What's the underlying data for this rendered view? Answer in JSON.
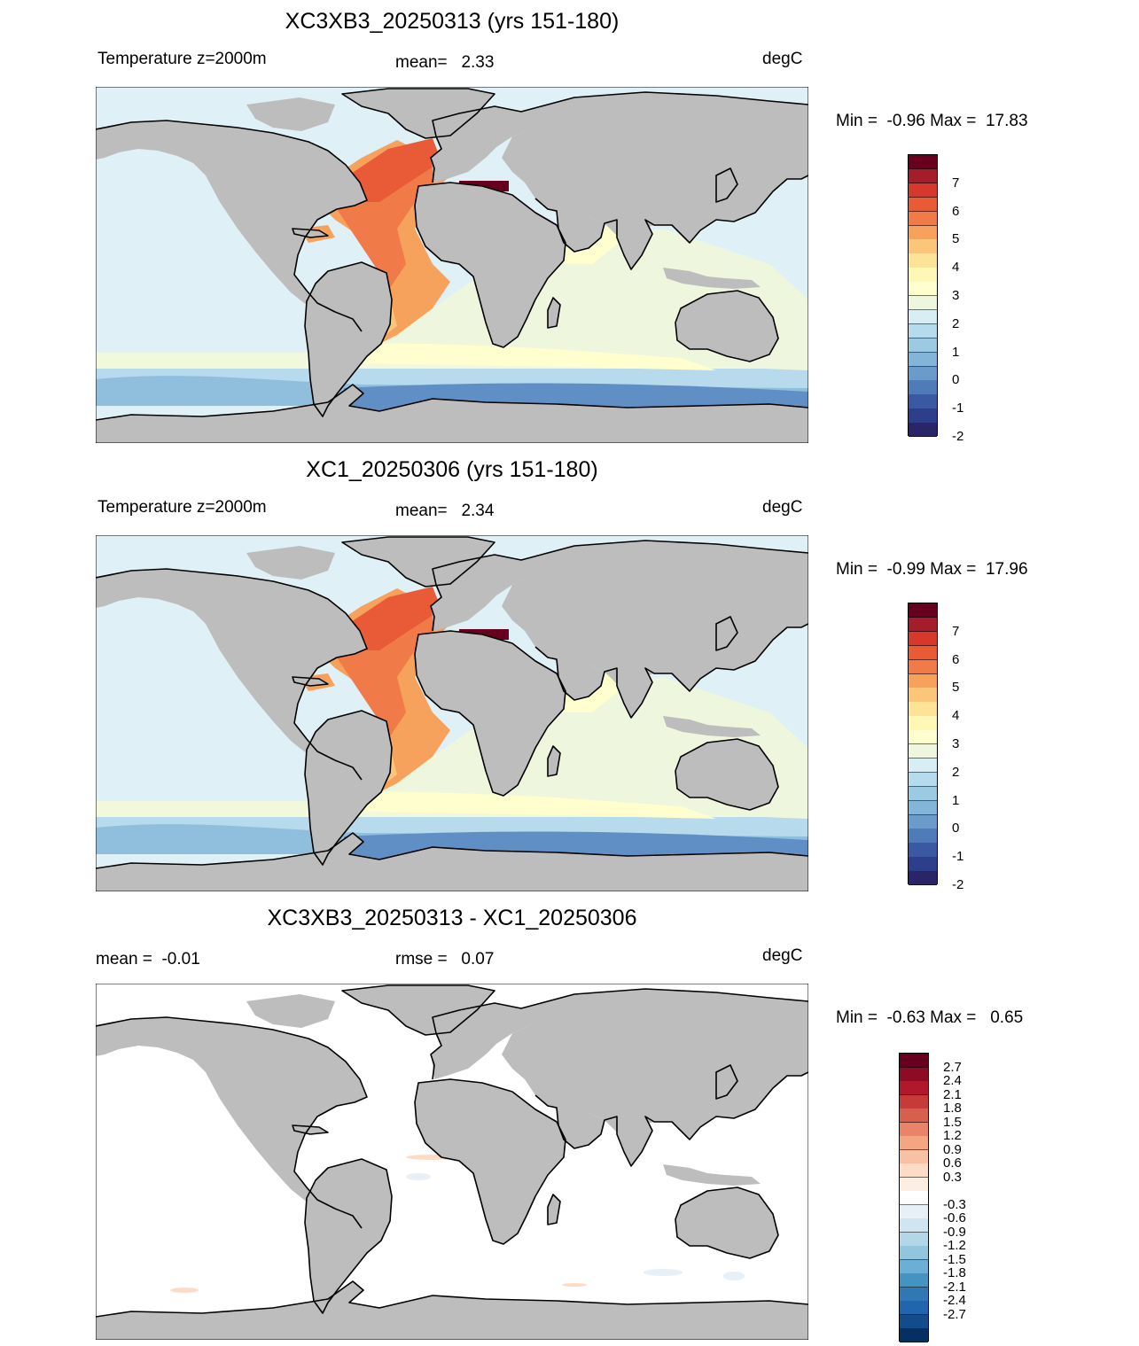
{
  "panels": [
    {
      "title": "XC3XB3_20250313 (yrs 151-180)",
      "left_label": "Temperature z=2000m",
      "mid_label": "mean=   2.33",
      "units": "degC",
      "minmax": "Min =  -0.96 Max =  17.83",
      "colorbar": {
        "labels": [
          "7",
          "6",
          "5",
          "4",
          "3",
          "2",
          "1",
          "0",
          "-1",
          "-2"
        ],
        "colors": [
          "#67001f",
          "#a51c2b",
          "#d6382b",
          "#e95a36",
          "#f07a48",
          "#f6a25c",
          "#fbc679",
          "#fde397",
          "#fff7b6",
          "#fefecf",
          "#eef7dd",
          "#d8edf4",
          "#b5dbec",
          "#9ccae3",
          "#82b5d8",
          "#6a9bca",
          "#4f7bb8",
          "#3a59a2",
          "#2d3e8a",
          "#2a2469"
        ]
      }
    },
    {
      "title": "XC1_20250306 (yrs 151-180)",
      "left_label": "Temperature z=2000m",
      "mid_label": "mean=   2.34",
      "units": "degC",
      "minmax": "Min =  -0.99 Max =  17.96",
      "colorbar": {
        "labels": [
          "7",
          "6",
          "5",
          "4",
          "3",
          "2",
          "1",
          "0",
          "-1",
          "-2"
        ],
        "colors": [
          "#67001f",
          "#a51c2b",
          "#d6382b",
          "#e95a36",
          "#f07a48",
          "#f6a25c",
          "#fbc679",
          "#fde397",
          "#fff7b6",
          "#fefecf",
          "#eef7dd",
          "#d8edf4",
          "#b5dbec",
          "#9ccae3",
          "#82b5d8",
          "#6a9bca",
          "#4f7bb8",
          "#3a59a2",
          "#2d3e8a",
          "#2a2469"
        ]
      }
    },
    {
      "title": "XC3XB3_20250313 - XC1_20250306",
      "left_label": "mean =  -0.01",
      "mid_label": "rmse =   0.07",
      "units": "degC",
      "minmax": "Min =  -0.63 Max =   0.65",
      "colorbar": {
        "labels": [
          "2.7",
          "2.4",
          "2.1",
          "1.8",
          "1.5",
          "1.2",
          "0.9",
          "0.6",
          "0.3",
          "-0.3",
          "-0.6",
          "-0.9",
          "-1.2",
          "-1.5",
          "-1.8",
          "-2.1",
          "-2.4",
          "-2.7"
        ],
        "colors": [
          "#67001f",
          "#8e0b26",
          "#b2182b",
          "#c63a3a",
          "#d6604d",
          "#e9846a",
          "#f4a582",
          "#f8c1a4",
          "#fddbc7",
          "#fdeee4",
          "#ffffff",
          "#e6f0f6",
          "#d1e5f0",
          "#b4d7e8",
          "#92c5de",
          "#6baed6",
          "#4393c3",
          "#2f78b4",
          "#2166ac",
          "#124c8a",
          "#053061"
        ]
      }
    }
  ],
  "colors": {
    "land": "#bdbdbd",
    "coast": "#000000",
    "ocean_base": "#dff0f7"
  }
}
